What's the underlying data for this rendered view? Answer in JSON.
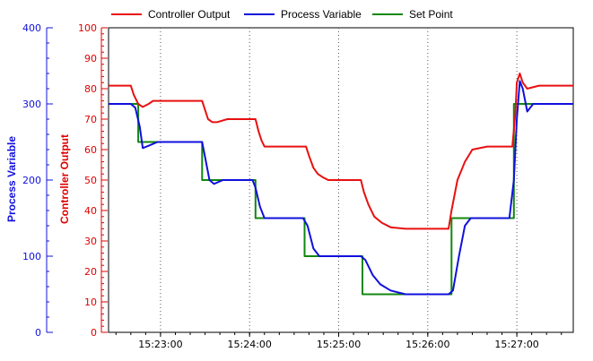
{
  "chart_data": {
    "type": "line",
    "title": "",
    "legend": {
      "placement": "top",
      "entries": [
        "Controller Output",
        "Process Variable",
        "Set Point"
      ]
    },
    "grid": {
      "x": true,
      "y": false
    },
    "x_axis": {
      "ticks": [
        "15:23:00",
        "15:24:00",
        "15:25:00",
        "15:26:00",
        "15:27:00"
      ],
      "range": [
        "15:22:25",
        "15:27:38"
      ]
    },
    "y_axes": {
      "left_outer": {
        "label": "Process Variable",
        "ticks": [
          0,
          100,
          200,
          300,
          400
        ],
        "range": [
          0,
          400
        ],
        "color": "#1010dd"
      },
      "left_inner": {
        "label": "Controller Output",
        "ticks": [
          0,
          10,
          20,
          30,
          40,
          50,
          60,
          70,
          80,
          90,
          100
        ],
        "range": [
          0,
          100
        ],
        "color": "#e00000"
      }
    },
    "series": [
      {
        "name": "Controller Output",
        "axis": "left_inner",
        "color": "#e81010",
        "x": [
          "15:22:25",
          "15:22:40",
          "15:22:42",
          "15:22:45",
          "15:22:48",
          "15:22:52",
          "15:22:55",
          "15:23:00",
          "15:23:10",
          "15:23:15",
          "15:23:20",
          "15:23:28",
          "15:23:30",
          "15:23:32",
          "15:23:35",
          "15:23:38",
          "15:23:45",
          "15:23:55",
          "15:24:04",
          "15:24:06",
          "15:24:08",
          "15:24:10",
          "15:24:12",
          "15:24:20",
          "15:24:38",
          "15:24:40",
          "15:24:43",
          "15:24:46",
          "15:24:49",
          "15:24:53",
          "15:24:58",
          "15:25:15",
          "15:25:17",
          "15:25:20",
          "15:25:24",
          "15:25:29",
          "15:25:35",
          "15:25:45",
          "15:25:55",
          "15:26:10",
          "15:26:14",
          "15:26:16",
          "15:26:20",
          "15:26:25",
          "15:26:30",
          "15:26:40",
          "15:26:55",
          "15:26:57",
          "15:26:59",
          "15:27:00",
          "15:27:02",
          "15:27:04",
          "15:27:07",
          "15:27:15",
          "15:27:38"
        ],
        "y": [
          81,
          81,
          78,
          75,
          74,
          75,
          76,
          76,
          76,
          76,
          76,
          76,
          73,
          70,
          69,
          69,
          70,
          70,
          70,
          66,
          63,
          61,
          61,
          61,
          61,
          58,
          54,
          52,
          51,
          50,
          50,
          50,
          46,
          42,
          38,
          36,
          34.5,
          34,
          34,
          34,
          34,
          40,
          50,
          56,
          60,
          61,
          61,
          61,
          72,
          82,
          85,
          82,
          80,
          81,
          81
        ]
      },
      {
        "name": "Process Variable",
        "axis": "left_outer",
        "color": "#1010dd",
        "x": [
          "15:22:25",
          "15:22:40",
          "15:22:43",
          "15:22:46",
          "15:22:48",
          "15:22:52",
          "15:22:58",
          "15:23:15",
          "15:23:28",
          "15:23:30",
          "15:23:33",
          "15:23:36",
          "15:23:42",
          "15:24:02",
          "15:24:04",
          "15:24:07",
          "15:24:10",
          "15:24:15",
          "15:24:36",
          "15:24:39",
          "15:24:43",
          "15:24:47",
          "15:24:52",
          "15:25:15",
          "15:25:18",
          "15:25:23",
          "15:25:28",
          "15:25:35",
          "15:25:45",
          "15:26:14",
          "15:26:17",
          "15:26:21",
          "15:26:25",
          "15:26:29",
          "15:26:35",
          "15:26:55",
          "15:26:58",
          "15:27:00",
          "15:27:02",
          "15:27:04",
          "15:27:07",
          "15:27:11",
          "15:27:15",
          "15:27:38"
        ],
        "y": [
          300,
          300,
          295,
          270,
          242,
          245,
          250,
          250,
          250,
          230,
          200,
          195,
          200,
          200,
          190,
          165,
          150,
          150,
          150,
          140,
          110,
          100,
          100,
          100,
          95,
          75,
          63,
          55,
          50,
          50,
          55,
          100,
          140,
          150,
          150,
          150,
          200,
          280,
          330,
          320,
          290,
          300,
          300,
          300
        ]
      },
      {
        "name": "Set Point",
        "axis": "left_outer",
        "color": "#108810",
        "x": [
          "15:22:25",
          "15:22:45",
          "15:22:45",
          "15:23:28",
          "15:23:28",
          "15:24:04",
          "15:24:04",
          "15:24:37",
          "15:24:37",
          "15:25:16",
          "15:25:16",
          "15:26:16",
          "15:26:16",
          "15:26:58",
          "15:26:58",
          "15:27:38"
        ],
        "y": [
          300,
          300,
          250,
          250,
          200,
          200,
          150,
          150,
          100,
          100,
          50,
          50,
          150,
          150,
          300,
          300
        ]
      }
    ]
  }
}
